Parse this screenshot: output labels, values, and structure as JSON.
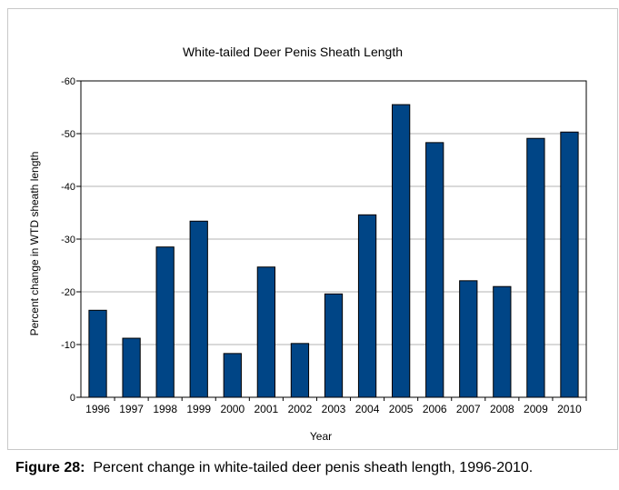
{
  "chart_data": {
    "type": "bar",
    "title": "White-tailed Deer Penis Sheath Length",
    "xlabel": "Year",
    "ylabel": "Percent change in WTD sheath length",
    "categories": [
      "1996",
      "1997",
      "1998",
      "1999",
      "2000",
      "2001",
      "2002",
      "2003",
      "2004",
      "2005",
      "2006",
      "2007",
      "2008",
      "2009",
      "2010"
    ],
    "values": [
      -16.5,
      -11.2,
      -28.5,
      -33.4,
      -8.3,
      -24.7,
      -10.2,
      -19.6,
      -34.6,
      -55.5,
      -48.3,
      -22.1,
      -21.0,
      -49.1,
      -50.3
    ],
    "ylim": [
      0,
      -60
    ],
    "yticks": [
      0,
      -10,
      -20,
      -30,
      -40,
      -50,
      -60
    ],
    "y_axis_inverted": true,
    "grid": true,
    "bar_color": "#004586"
  },
  "caption": {
    "label": "Figure 28:",
    "text": "Percent change in white-tailed deer penis sheath length, 1996-2010."
  }
}
